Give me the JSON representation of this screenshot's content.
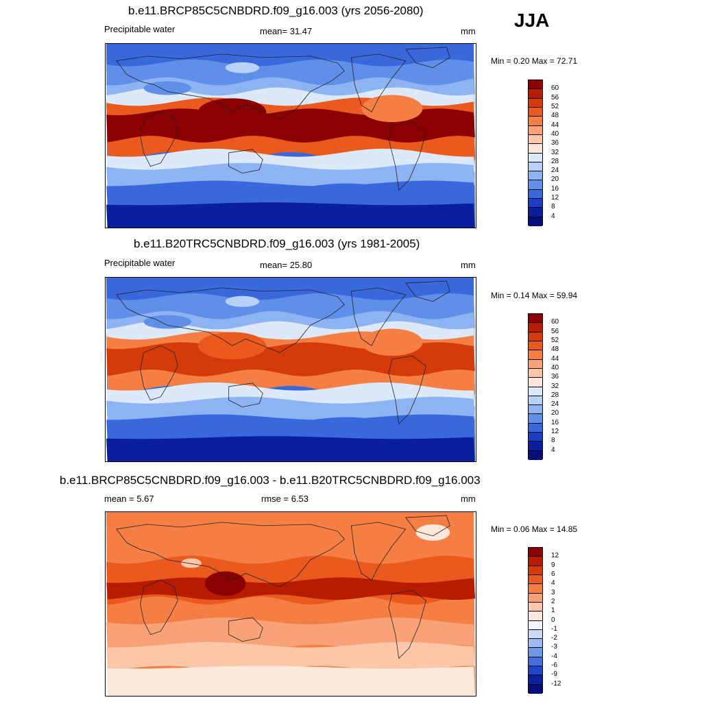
{
  "season": "JJA",
  "panels": [
    {
      "title": "b.e11.BRCP85C5CNBDRD.f09_g16.003 (yrs 2056-2080)",
      "left_label": "Precipitable water",
      "center_label": "mean=  31.47",
      "right_label": "mm",
      "minmax": "Min =   0.20 Max =  72.71",
      "levels": [
        "60",
        "56",
        "52",
        "48",
        "44",
        "40",
        "36",
        "32",
        "28",
        "24",
        "20",
        "16",
        "12",
        "8",
        "4"
      ],
      "colors": [
        "#8b0000",
        "#b81c00",
        "#d53a0b",
        "#ea5a1f",
        "#f57e45",
        "#f9a278",
        "#fcc7a8",
        "#fde6d8",
        "#dce9fb",
        "#b8d1f8",
        "#8db3f3",
        "#5f8fe9",
        "#3868dc",
        "#1a3ec6",
        "#0a1f9e",
        "#050f7a"
      ]
    },
    {
      "title": "b.e11.B20TRC5CNBDRD.f09_g16.003 (yrs 1981-2005)",
      "left_label": "Precipitable water",
      "center_label": "mean=  25.80",
      "right_label": "mm",
      "minmax": "Min =   0.14 Max =  59.94",
      "levels": [
        "60",
        "56",
        "52",
        "48",
        "44",
        "40",
        "36",
        "32",
        "28",
        "24",
        "20",
        "16",
        "12",
        "8",
        "4"
      ],
      "colors": [
        "#8b0000",
        "#b81c00",
        "#d53a0b",
        "#ea5a1f",
        "#f57e45",
        "#f9a278",
        "#fcc7a8",
        "#fde6d8",
        "#dce9fb",
        "#b8d1f8",
        "#8db3f3",
        "#5f8fe9",
        "#3868dc",
        "#1a3ec6",
        "#0a1f9e",
        "#050f7a"
      ]
    },
    {
      "title": "b.e11.BRCP85C5CNBDRD.f09_g16.003 - b.e11.B20TRC5CNBDRD.f09_g16.003",
      "left_label": "mean =   5.67",
      "center_label": "rmse =   6.53",
      "right_label": "mm",
      "minmax": "Min =   0.06 Max =  14.85",
      "levels": [
        "12",
        "9",
        "6",
        "4",
        "3",
        "2",
        "1",
        "0",
        "-1",
        "-2",
        "-3",
        "-4",
        "-6",
        "-9",
        "-12"
      ],
      "colors": [
        "#8b0000",
        "#b81c00",
        "#d53a0b",
        "#ea5a1f",
        "#f57e45",
        "#f9a278",
        "#fcc7a8",
        "#fde8dc",
        "#f2f6fd",
        "#c9dbf9",
        "#9dbcf4",
        "#6e97ea",
        "#4470dd",
        "#1f45c8",
        "#0b22a0",
        "#050f7a"
      ]
    }
  ]
}
